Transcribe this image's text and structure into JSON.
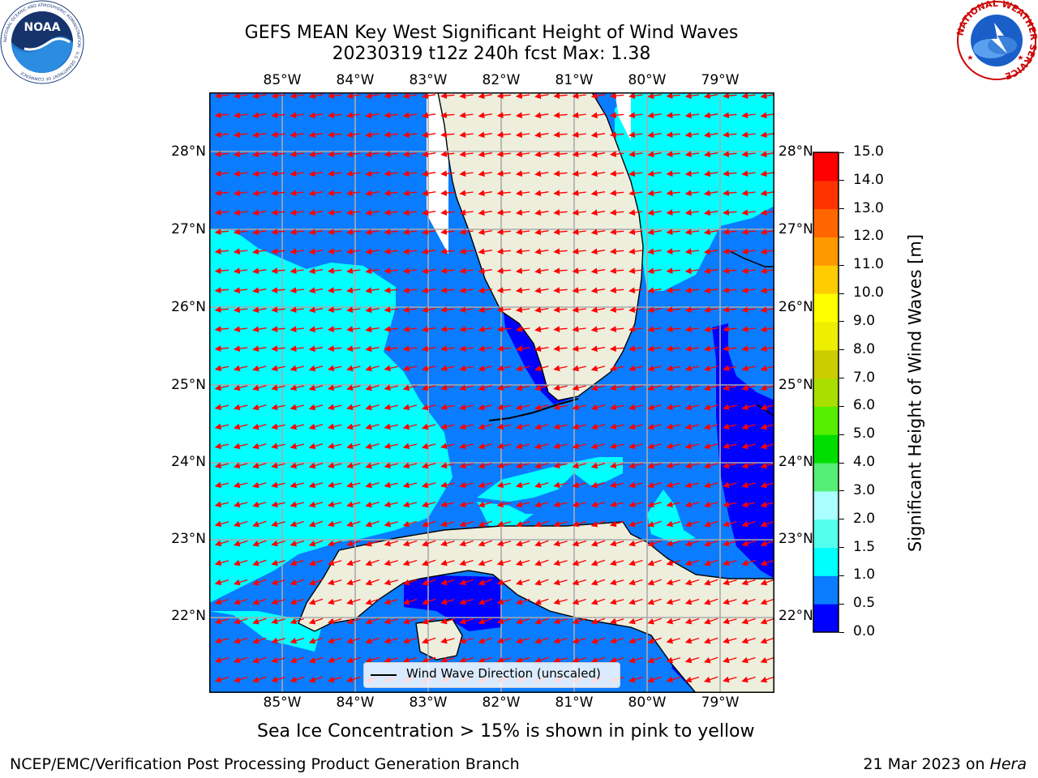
{
  "title": {
    "line1": "GEFS MEAN Key West Significant Height of Wind Waves",
    "line2": "20230319 t12z 240h fcst   Max: 1.38"
  },
  "logos": {
    "noaa": "NOAA",
    "noaa_ring": "NATIONAL OCEANIC AND ATMOSPHERIC ADMINISTRATION · U.S. DEPARTMENT OF COMMERCE",
    "nws_ring": "NATIONAL WEATHER SERVICE"
  },
  "map": {
    "lon_ticks": [
      "85°W",
      "84°W",
      "83°W",
      "82°W",
      "81°W",
      "80°W",
      "79°W"
    ],
    "lat_ticks": [
      "28°N",
      "27°N",
      "26°N",
      "25°N",
      "24°N",
      "23°N",
      "22°N"
    ],
    "lon_range": [
      -86.0,
      -78.3
    ],
    "lat_range": [
      21.05,
      28.75
    ],
    "field": "Significant Height of Wind Waves",
    "max_value": 1.38,
    "arrows": "red wind wave direction vectors, mostly pointing west",
    "land_color": "#eeeedd",
    "grid": true
  },
  "legend": {
    "label": "Wind Wave Direction (unscaled)"
  },
  "colorbar": {
    "label": "Significant Height of Wind Waves [m]",
    "ticks": [
      "0.0",
      "0.5",
      "1.0",
      "1.5",
      "2.0",
      "3.0",
      "4.0",
      "5.0",
      "6.0",
      "7.0",
      "8.0",
      "9.0",
      "10.0",
      "11.0",
      "12.0",
      "13.0",
      "14.0",
      "15.0"
    ],
    "colors": [
      "#0000ff",
      "#0a7cff",
      "#00ffff",
      "#55ffee",
      "#aaffff",
      "#55ee77",
      "#00dd00",
      "#55ee00",
      "#aadd00",
      "#cccc00",
      "#eeee00",
      "#ffff00",
      "#ffcc00",
      "#ff9900",
      "#ff6600",
      "#ff3300",
      "#ff0000"
    ]
  },
  "note": "Sea Ice Concentration > 15% is shown in pink to yellow",
  "footer": {
    "left": "NCEP/EMC/Verification Post Processing Product Generation Branch",
    "date": "21 Mar 2023 on ",
    "host": "Hera"
  }
}
